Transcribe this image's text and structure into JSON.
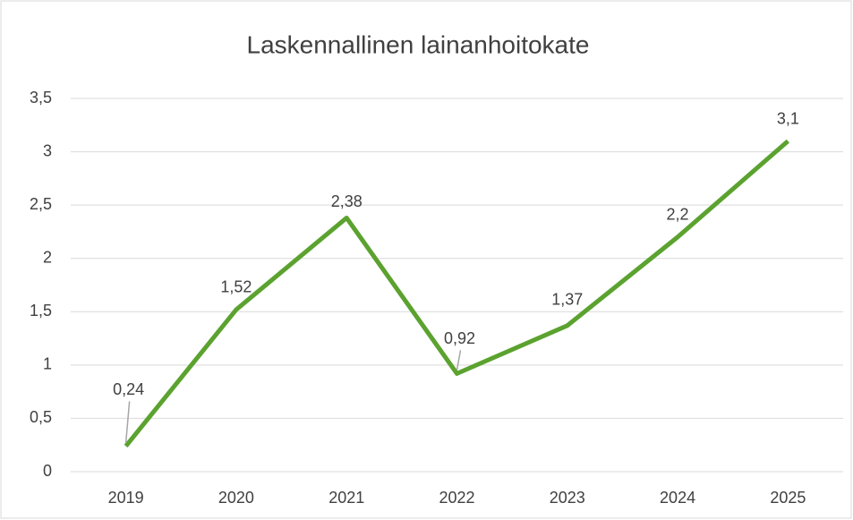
{
  "chart_data": {
    "type": "line",
    "title": "Laskennallinen lainanhoitokate",
    "categories": [
      "2019",
      "2020",
      "2021",
      "2022",
      "2023",
      "2024",
      "2025"
    ],
    "series": [
      {
        "name": "Laskennallinen lainanhoitokate",
        "color": "#5ba22f",
        "values": [
          0.24,
          1.52,
          2.38,
          0.92,
          1.37,
          2.2,
          3.1
        ],
        "value_labels": [
          "0,24",
          "1,52",
          "2,38",
          "0,92",
          "1,37",
          "2,2",
          "3,1"
        ]
      }
    ],
    "ylim": [
      0,
      3.5
    ],
    "yticks": [
      0,
      {
        "value": 0.5,
        "label": "0,5"
      },
      1,
      {
        "value": 1.5,
        "label": "1,5"
      },
      2,
      {
        "value": 2.5,
        "label": "2,5"
      },
      3,
      {
        "value": 3.5,
        "label": "3,5"
      }
    ],
    "grid": true
  }
}
